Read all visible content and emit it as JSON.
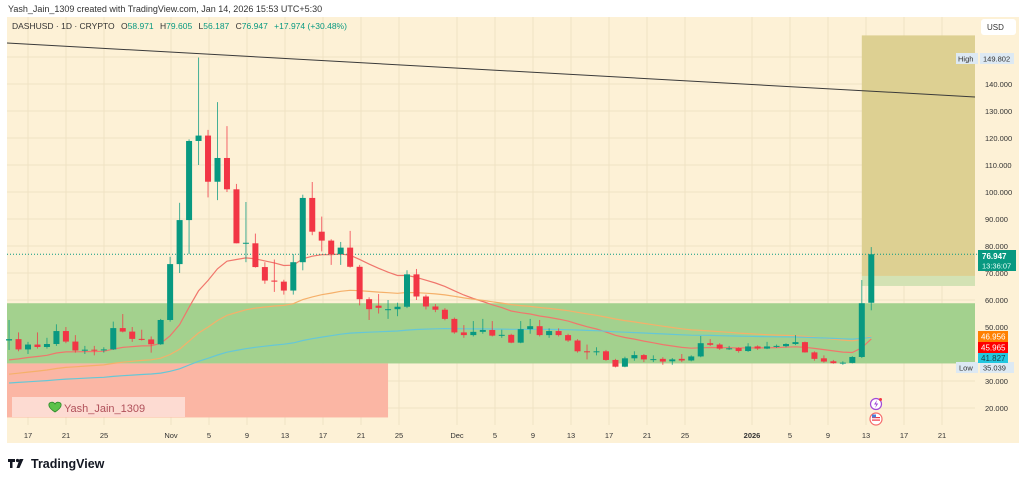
{
  "header": {
    "caption": "Yash_Jain_1309 created with TradingView.com, Jan 14, 2026 15:53 UTC+5:30",
    "symbol": "DASHUSD · 1D · CRYPTO",
    "o_label": "O",
    "o_value": "58.971",
    "h_label": "H",
    "h_value": "79.605",
    "l_label": "L",
    "l_value": "56.187",
    "c_label": "C",
    "c_value": "76.947",
    "change": "+17.974 (+30.48%)"
  },
  "price_axis": {
    "currency": "USD",
    "ticks": [
      "140.000",
      "130.000",
      "120.000",
      "110.000",
      "100.000",
      "90.000",
      "80.000",
      "70.000",
      "60.000",
      "50.000",
      "30.000",
      "20.000"
    ],
    "high_label": "High",
    "high_value": "149.802",
    "low_label": "Low",
    "low_value": "35.039",
    "last_price": "76.947",
    "countdown": "13:36:07",
    "ma_orange": "46.956",
    "ma_red": "45.965",
    "ma_cyan": "41.827"
  },
  "time_axis": [
    "17",
    "21",
    "25",
    "Nov",
    "5",
    "9",
    "13",
    "17",
    "21",
    "25",
    "Dec",
    "5",
    "9",
    "13",
    "17",
    "21",
    "25",
    "2026",
    "5",
    "9",
    "13",
    "17",
    "21"
  ],
  "watermark": "Yash_Jain_1309",
  "brand": "TradingView",
  "colors": {
    "up": "#089981",
    "down": "#f23645",
    "bg": "#fdf1d6",
    "ma_red": "#f0766c",
    "ma_orange": "#f5b06a",
    "ma_cyan": "#66c7d6",
    "zone_green": "#a3d18e",
    "zone_pink": "#fbb6a4",
    "zone_olive": "#ddd092"
  },
  "icons": [
    "lightning-event-icon",
    "us-flag-event-icon",
    "heart-icon",
    "tradingview-logo-icon"
  ],
  "chart_data": {
    "type": "candlestick",
    "symbol": "DASHUSD",
    "interval": "1D",
    "ylim": [
      12,
      158
    ],
    "grid": true,
    "trendline": {
      "from": [
        "2025-10-14",
        155.2
      ],
      "to": [
        "2026-01-25",
        135.2
      ]
    },
    "zones": [
      {
        "name": "green-zone",
        "from": "2025-10-14",
        "to": "2026-01-25",
        "low": 36.5,
        "high": 58.8
      },
      {
        "name": "pink-zone",
        "from": "2025-10-14",
        "to": "2025-11-24",
        "low": 16.5,
        "high": 36.5
      },
      {
        "name": "olive-zone",
        "from": "2026-01-13",
        "to": "2026-01-25",
        "low": 68.9,
        "high": 158
      },
      {
        "name": "light-green-zone",
        "from": "2026-01-13",
        "to": "2026-01-25",
        "low": 65.2,
        "high": 68.9
      }
    ],
    "candles": [
      [
        "2025-10-15",
        45,
        52.6,
        41.5,
        45.5
      ],
      [
        "2025-10-16",
        45.5,
        48,
        41,
        41.7
      ],
      [
        "2025-10-17",
        41.7,
        44.5,
        40,
        43.5
      ],
      [
        "2025-10-18",
        43.5,
        48,
        42,
        42.6
      ],
      [
        "2025-10-19",
        42.6,
        46,
        42,
        43.7
      ],
      [
        "2025-10-20",
        43.7,
        51,
        43,
        48.5
      ],
      [
        "2025-10-21",
        48.5,
        50,
        44,
        44.6
      ],
      [
        "2025-10-22",
        44.6,
        47,
        40.5,
        41.3
      ],
      [
        "2025-10-23",
        41.3,
        43,
        40,
        41.6
      ],
      [
        "2025-10-24",
        41.6,
        43,
        39.5,
        41.4
      ],
      [
        "2025-10-25",
        41.4,
        42.5,
        40.5,
        41.7
      ],
      [
        "2025-10-26",
        41.7,
        52,
        41.5,
        49.6
      ],
      [
        "2025-10-27",
        49.6,
        54.8,
        48,
        48.3
      ],
      [
        "2025-10-28",
        48.3,
        50,
        44.5,
        45.6
      ],
      [
        "2025-10-29",
        45.6,
        49,
        45,
        45.4
      ],
      [
        "2025-10-30",
        45.4,
        46.5,
        40.5,
        43.6
      ],
      [
        "2025-10-31",
        43.6,
        53,
        43.4,
        52.6
      ],
      [
        "2025-11-01",
        52.6,
        76,
        52,
        73.3
      ],
      [
        "2025-11-02",
        73.3,
        96,
        70,
        89.6
      ],
      [
        "2025-11-03",
        89.6,
        119.5,
        77,
        118.9
      ],
      [
        "2025-11-04",
        118.9,
        149.802,
        110,
        120.9
      ],
      [
        "2025-11-05",
        120.9,
        123,
        98,
        103.8
      ],
      [
        "2025-11-06",
        103.8,
        133.3,
        97,
        112.6
      ],
      [
        "2025-11-07",
        112.6,
        124.4,
        100,
        101
      ],
      [
        "2025-11-08",
        101,
        103,
        81,
        81
      ],
      [
        "2025-11-09",
        81,
        96.3,
        74,
        81.2
      ],
      [
        "2025-11-10",
        81,
        84.6,
        72,
        72.2
      ],
      [
        "2025-11-11",
        72.2,
        74,
        66,
        67.2
      ],
      [
        "2025-11-12",
        67.2,
        75,
        63,
        66.8
      ],
      [
        "2025-11-13",
        66.8,
        67.5,
        62,
        63.5
      ],
      [
        "2025-11-14",
        63.5,
        77,
        62,
        74
      ],
      [
        "2025-11-15",
        74,
        99,
        71,
        97.8
      ],
      [
        "2025-11-16",
        97.8,
        103.7,
        84,
        85.3
      ],
      [
        "2025-11-17",
        85.3,
        90.9,
        78,
        82
      ],
      [
        "2025-11-18",
        82,
        82.5,
        73,
        77
      ],
      [
        "2025-11-19",
        77,
        81.5,
        73,
        79.4
      ],
      [
        "2025-11-20",
        79.4,
        85.6,
        72,
        72.3
      ],
      [
        "2025-11-21",
        72.3,
        73,
        58,
        60.3
      ],
      [
        "2025-11-22",
        60.3,
        61,
        52.6,
        56.6
      ],
      [
        "2025-11-23",
        57.9,
        62.2,
        55,
        57.1
      ],
      [
        "2025-11-24",
        56.3,
        60,
        53,
        56.6
      ],
      [
        "2025-11-25",
        56.6,
        59,
        54,
        57.5
      ],
      [
        "2025-11-26",
        57.5,
        71,
        57,
        69.5
      ],
      [
        "2025-11-27",
        69.5,
        71.5,
        60,
        61.3
      ],
      [
        "2025-11-28",
        61.3,
        62,
        56.5,
        57.6
      ],
      [
        "2025-11-29",
        57.6,
        58.5,
        55.5,
        56.4
      ],
      [
        "2025-11-30",
        56.4,
        57,
        52.5,
        53
      ],
      [
        "2025-12-01",
        53,
        53.5,
        47.5,
        48
      ],
      [
        "2025-12-02",
        48,
        50.7,
        46,
        47
      ],
      [
        "2025-12-03",
        47,
        52.2,
        46.5,
        48.2
      ],
      [
        "2025-12-04",
        48.2,
        53,
        47.5,
        48.9
      ],
      [
        "2025-12-05",
        48.9,
        52.2,
        46.5,
        46.8
      ],
      [
        "2025-12-06",
        46.8,
        49,
        46,
        47.1
      ],
      [
        "2025-12-07",
        47.1,
        47.5,
        44,
        44.2
      ],
      [
        "2025-12-08",
        44.2,
        52.2,
        44,
        49.2
      ],
      [
        "2025-12-09",
        49.2,
        53,
        47.5,
        50.3
      ],
      [
        "2025-12-10",
        50.3,
        52.6,
        46.5,
        47
      ],
      [
        "2025-12-11",
        47,
        49.5,
        46,
        48.5
      ],
      [
        "2025-12-12",
        48.5,
        49.5,
        46.5,
        47
      ],
      [
        "2025-12-13",
        47,
        47.5,
        44.5,
        45
      ],
      [
        "2025-12-14",
        45,
        45.5,
        40.5,
        41
      ],
      [
        "2025-12-15",
        41,
        43.5,
        38,
        40.8
      ],
      [
        "2025-12-16",
        40.8,
        42.5,
        39.5,
        41
      ],
      [
        "2025-12-17",
        41,
        41.5,
        37.5,
        37.8
      ],
      [
        "2025-12-18",
        37.8,
        38.2,
        35.039,
        35.3
      ],
      [
        "2025-12-19",
        35.3,
        39,
        35.1,
        38.4
      ],
      [
        "2025-12-20",
        38.4,
        41,
        37.5,
        39.6
      ],
      [
        "2025-12-21",
        39.6,
        40,
        37,
        38
      ],
      [
        "2025-12-22",
        38,
        39.5,
        37,
        38.1
      ],
      [
        "2025-12-23",
        38.2,
        38.8,
        36,
        37.2
      ],
      [
        "2025-12-24",
        37.3,
        38.5,
        36,
        38
      ],
      [
        "2025-12-25",
        38.2,
        40,
        37,
        37.6
      ],
      [
        "2025-12-26",
        37.6,
        39.5,
        37.3,
        39.1
      ],
      [
        "2025-12-27",
        39.1,
        46.7,
        38.8,
        44
      ],
      [
        "2025-12-28",
        44,
        45.5,
        43,
        43.4
      ],
      [
        "2025-12-29",
        43.5,
        44,
        41.5,
        42
      ],
      [
        "2025-12-30",
        42,
        43,
        41.5,
        42.1
      ],
      [
        "2025-12-31",
        42.2,
        42.5,
        40.5,
        41.1
      ],
      [
        "2026-01-01",
        41.1,
        44,
        40.8,
        42.8
      ],
      [
        "2026-01-02",
        42.8,
        43.2,
        41.5,
        42
      ],
      [
        "2026-01-03",
        42,
        44.5,
        41.8,
        42.8
      ],
      [
        "2026-01-04",
        42.8,
        43.5,
        42.3,
        43
      ],
      [
        "2026-01-05",
        42.9,
        44,
        42.5,
        43.7
      ],
      [
        "2026-01-06",
        43.7,
        47,
        43.3,
        44.4
      ],
      [
        "2026-01-07",
        44.4,
        44.6,
        40.5,
        40.6
      ],
      [
        "2026-01-08",
        40.6,
        41,
        37.5,
        38.2
      ],
      [
        "2026-01-09",
        38.4,
        39.5,
        36.8,
        37.2
      ],
      [
        "2026-01-10",
        37.3,
        37.8,
        36.4,
        36.6
      ],
      [
        "2026-01-11",
        36.7,
        37.3,
        36,
        36.8
      ],
      [
        "2026-01-12",
        36.7,
        39.2,
        36.5,
        38.9
      ],
      [
        "2026-01-13",
        38.9,
        67.4,
        38.5,
        58.8
      ],
      [
        "2026-01-14",
        58.971,
        79.605,
        56.187,
        76.947
      ]
    ]
  }
}
